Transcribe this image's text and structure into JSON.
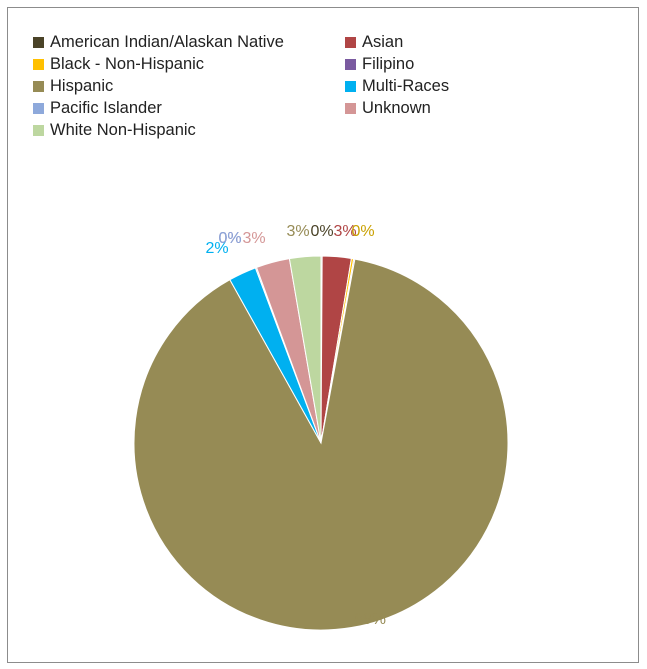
{
  "chart_data": {
    "type": "pie",
    "title": "",
    "categories": [
      "American Indian/Alaskan Native",
      "Asian",
      "Black - Non-Hispanic",
      "Filipino",
      "Hispanic",
      "Multi-Races",
      "Pacific Islander",
      "Unknown",
      "White Non-Hispanic"
    ],
    "values": [
      0.1,
      2.5,
      0.2,
      0.1,
      89.0,
      2.4,
      0.1,
      2.9,
      2.7
    ],
    "data_labels": [
      "0%",
      "3%",
      "0%",
      "0%",
      "89%",
      "2%",
      "0%",
      "3%",
      "3%"
    ],
    "colors": [
      "#4a4328",
      "#b04545",
      "#ffc000",
      "#7a5aa0",
      "#968b55",
      "#00b0f0",
      "#8ea9db",
      "#d49696",
      "#bdd7a0"
    ],
    "label_colors": [
      "#4a4328",
      "#b04545",
      "#c9a000",
      "#7a5aa0",
      "#968b55",
      "#00b0f0",
      "#8ea9db",
      "#d49696",
      "#968b55"
    ],
    "legend_position": "top",
    "legend_columns": 2,
    "start_angle_deg": 0,
    "direction": "clockwise"
  }
}
